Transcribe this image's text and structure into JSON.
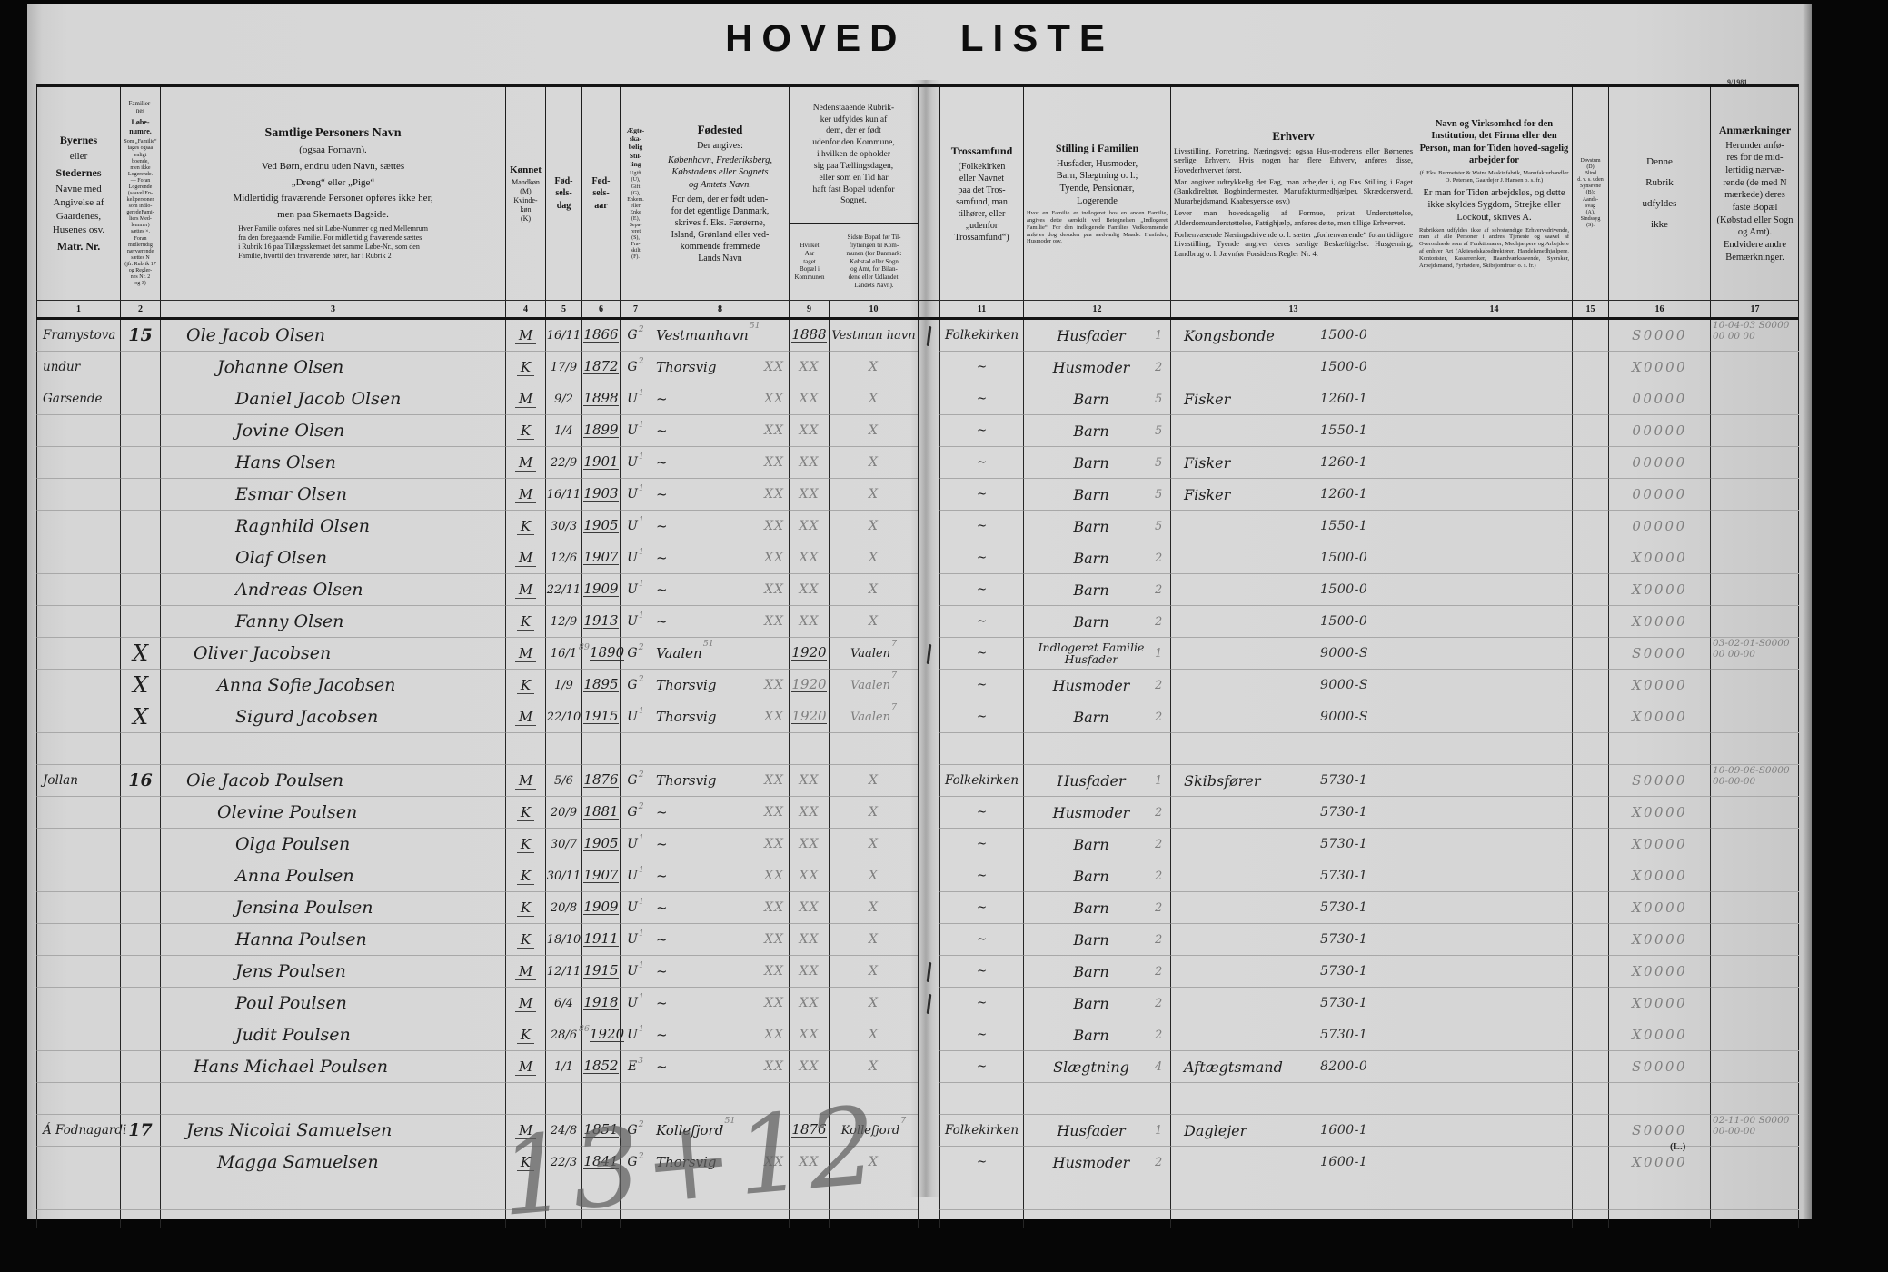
{
  "page": {
    "title": "HOVED LISTE",
    "serial": "9/1981",
    "pencil_total": "13+12",
    "corner_mark": "(L.)"
  },
  "header": {
    "numbers": [
      "1",
      "2",
      "3",
      "4",
      "5",
      "6",
      "7",
      "8",
      "9",
      "10",
      "11",
      "12",
      "13",
      "14",
      "15",
      "16",
      "17"
    ],
    "c1": {
      "b1": "Byernes",
      "n1": "eller",
      "b2": "Stedernes",
      "n2": "Navne med\nAngivelse af\nGaardenes,\nHusenes osv.",
      "b3": "Matr. Nr."
    },
    "c2": {
      "n1": "Familier-\nnes",
      "b": "Løbe-\nnumre.",
      "small": "Som „Familie“\ntages ogsaa\nenligt\nboende,\nmen ikke\nLogerende.\n— Foran\nLogerende\n(saavel En-\nkeltpersoner\nsom indlo-\ngeredeFami-\nliers Med-\nlemmer)\nsættes ×.\nForan\nmidlertidig\nnærværende\nsættes N\n(jfr. Rubrik 17\nog Regler-\nnes Nr. 2\nog 3)"
    },
    "c3": {
      "t": "Samtlige Personers Navn",
      "s1": "(ogsaa Fornavn).",
      "s2": "Ved Børn, endnu uden Navn, sættes",
      "s3": "„Dreng“ eller „Pige“",
      "s4": "Midlertidig fraværende Personer opføres ikke her,",
      "s5": "men paa Skemaets Bagside.",
      "p": "Hver Familie opføres med sit Løbe-Nummer og med Mellemrum\nfra den foregaaende Familie. For midlertidig fraværende sættes\ni Rubrik 16 paa Tillægsskemaet det samme Løbe-Nr., som den\nFamilie, hvortil den fraværende hører, har i Rubrik 2"
    },
    "c4": {
      "t": "Kønnet",
      "s": "Mandkøn\n(M)\nKvinde-\nkøn\n(K)"
    },
    "c5": {
      "t": "Fød-\nsels-\ndag"
    },
    "c6": {
      "t": "Fød-\nsels-\naar"
    },
    "c7": {
      "t": "Ægte-\nska-\nbelig\nStil-\nling",
      "s": "Ugift\n(U),\nGift\n(G),\nEnkem.\neller\nEnke\n(E),\nSepa-\nreret\n(S),\nFra-\nskilt\n(F)."
    },
    "c8": {
      "t": "Fødested",
      "p1": "Der angives:",
      "p2": "København, Frederiksberg,\nKøbstadens eller Sognets\nog Amtets Navn.",
      "p3": "For dem, der er født uden-\nfor det egentlige Danmark,\nskrives f. Eks. Færøerne,\nIsland, Grønland eller ved-\nkommende fremmede\nLands Navn"
    },
    "c910": {
      "top": "Nedenstaaende Rubrik-\nker udfyldes kun af\ndem, der er født\nudenfor den Kommune,\ni hvilken de opholder\nsig paa Tællingsdagen,\neller som en Tid har\nhaft fast Bopæl udenfor\nSognet.",
      "c9": "Hvilket\nAar\ntaget\nBopæl i\nKommunen",
      "c10": "Sidste Bopæl før Til-\nflytningen til Kom-\nmunen (for Danmark:\nKøbstad eller Sogn\nog Amt, for Bilan-\ndene eller Udlandet:\nLandets Navn)."
    },
    "c11": {
      "t": "Trossamfund",
      "s": "(Folkekirken\neller Navnet\npaa det Tros-\nsamfund, man\ntilhører, eller\n„udenfor\nTrossamfund“)"
    },
    "c12": {
      "t": "Stilling i Familien",
      "s": "Husfader, Husmoder,\nBarn, Slægtning o. l.;\nTyende, Pensionær,\nLogerende",
      "p": "Hvor en Familie er indlogeret hos en anden Familie, angives dette særskilt ved Betegnelsen „Indlogeret Familie“. For den indlogerede Families Vedkommende anføres dog desuden paa sædvanlig Maade: Husfader, Husmoder osv."
    },
    "c13": {
      "t": "Erhverv",
      "p1": "Livsstilling, Forretning, Næringsvej; ogsaa Hus-moderens eller Børnenes særlige Erhverv. Hvis nogen har flere Erhverv, anføres disse, Hovederhvervet først.",
      "p2": "Man angiver udtrykkelig det Fag, man arbejder i, og Ens Stilling i Faget (Bankdirektør, Bogbindermester, Manufakturmedhjælper, Skræddersvend, Murarbejdsmand, Kaabesyerske osv.)",
      "p3": "Lever man hovedsagelig af Formue, privat Understøttelse, Alderdomsunderstøttelse, Fattighjælp, anføres dette, men tillige Erhvervet.",
      "p4": "Forhenværende Næringsdrivende o. l. sætter „forhenværende“ foran tidligere Livsstilling; Tyende angiver deres særlige Beskæftigelse: Husgerning, Landbrug o. l. Jævnfør Forsidens Regler Nr. 4."
    },
    "c14": {
      "t1": "Navn og Virksomhed for den Institution, det Firma eller den Person, man for Tiden hoved-sagelig arbejder for",
      "s1": "(f. Eks. Burmeister & Wains Maskinfabrik, Manufakturhandler O. Petersen, Gaardejer J. Hansen o. s. fr.)",
      "t2": "Er man for Tiden arbejdsløs, og dette ikke skyldes Sygdom, Strejke eller Lockout, skrives A.",
      "s2": "Rubrikken udfyldes ikke af selvstændige Erhvervsdrivende, men af alle Personer i andres Tjeneste og saavel af Overordnede som af Funktionærer, Medhjælpere og Arbejdere af enhver Art (Aktieselskabsdirektører, Handelsmedhjælpere, Kontorister, Kasserersker, Haandværkssvende, Syersker, Arbejdsmænd, Fyrbødere, Skibsjomfruer o. s. fr.)"
    },
    "c15": {
      "s": "Døvstum\n(D)\nBlind\nd. v. s. uden\nSynsevne\n(B);\nAands-\nsvag\n(A),\nSindssyg\n(S)."
    },
    "c16": {
      "t": "Denne\nRubrik\nudfyldes\nikke"
    },
    "c17": {
      "t": "Anmærkninger",
      "s": "Herunder anfø-\nres for de mid-\nlertidig nærvæ-\nrende (de med N\nmærkede) deres\nfaste Bopæl\n(Købstad eller Sogn\nog Amt).\nEndvidere andre\nBemærkninger."
    }
  },
  "fold_marks": [
    0,
    10,
    20,
    21
  ],
  "rows": [
    {
      "pl": "Framystova",
      "lb": "15",
      "nm": "Ole Jacob Olsen",
      "sx": "M",
      "bd": "16/11",
      "by": "1866",
      "ms": "G",
      "mss": "2",
      "bp": "Vestmanhavn",
      "bps": "51",
      "c9": "1888",
      "c10": "Vestman havn",
      "fa": "Folkekirken",
      "po": "Husfader",
      "pon": "1",
      "oc": "Kongsbonde",
      "ov": "1500-0",
      "c16": "S0000",
      "c17": "10-04-03 S0000\n00 00 00"
    },
    {
      "pl": "undur",
      "nm": "Johanne Olsen",
      "sx": "K",
      "bd": "17/9",
      "by": "1872",
      "ms": "G",
      "mss": "2",
      "bp": "Thorsvig",
      "bpx": "XX",
      "c9": "XX",
      "c10": "X",
      "fa": "~",
      "po": "Husmoder",
      "pon": "2",
      "ov": "1500-0",
      "c16": "X0000"
    },
    {
      "pl": "Garsende",
      "nm": "Daniel Jacob Olsen",
      "sx": "M",
      "bd": "9/2",
      "by": "1898",
      "ms": "U",
      "mss": "1",
      "bp": "~",
      "bpx": "XX",
      "c9": "XX",
      "c10": "X",
      "fa": "~",
      "po": "Barn",
      "pon": "5",
      "oc": "Fisker",
      "ov": "1260-1",
      "c16": "00000"
    },
    {
      "nm": "Jovine Olsen",
      "sx": "K",
      "bd": "1/4",
      "by": "1899",
      "ms": "U",
      "mss": "1",
      "bp": "~",
      "bpx": "XX",
      "c9": "XX",
      "c10": "X",
      "fa": "~",
      "po": "Barn",
      "pon": "5",
      "ov": "1550-1",
      "c16": "00000"
    },
    {
      "nm": "Hans Olsen",
      "sx": "M",
      "bd": "22/9",
      "by": "1901",
      "ms": "U",
      "mss": "1",
      "bp": "~",
      "bpx": "XX",
      "c9": "XX",
      "c10": "X",
      "fa": "~",
      "po": "Barn",
      "pon": "5",
      "oc": "Fisker",
      "ov": "1260-1",
      "c16": "00000"
    },
    {
      "nm": "Esmar Olsen",
      "sx": "M",
      "bd": "16/11",
      "by": "1903",
      "ms": "U",
      "mss": "1",
      "bp": "~",
      "bpx": "XX",
      "c9": "XX",
      "c10": "X",
      "fa": "~",
      "po": "Barn",
      "pon": "5",
      "oc": "Fisker",
      "ov": "1260-1",
      "c16": "00000"
    },
    {
      "nm": "Ragnhild Olsen",
      "sx": "K",
      "bd": "30/3",
      "by": "1905",
      "ms": "U",
      "mss": "1",
      "bp": "~",
      "bpx": "XX",
      "c9": "XX",
      "c10": "X",
      "fa": "~",
      "po": "Barn",
      "pon": "5",
      "ov": "1550-1",
      "c16": "00000"
    },
    {
      "nm": "Olaf Olsen",
      "sx": "M",
      "bd": "12/6",
      "by": "1907",
      "ms": "U",
      "mss": "1",
      "bp": "~",
      "bpx": "XX",
      "c9": "XX",
      "c10": "X",
      "fa": "~",
      "po": "Barn",
      "pon": "2",
      "ov": "1500-0",
      "c16": "X0000"
    },
    {
      "nm": "Andreas Olsen",
      "sx": "M",
      "bd": "22/11",
      "by": "1909",
      "ms": "U",
      "mss": "1",
      "bp": "~",
      "bpx": "XX",
      "c9": "XX",
      "c10": "X",
      "fa": "~",
      "po": "Barn",
      "pon": "2",
      "ov": "1500-0",
      "c16": "X0000"
    },
    {
      "nm": "Fanny Olsen",
      "sx": "K",
      "bd": "12/9",
      "by": "1913",
      "ms": "U",
      "mss": "1",
      "bp": "~",
      "bpx": "XX",
      "c9": "XX",
      "c10": "X",
      "fa": "~",
      "po": "Barn",
      "pon": "2",
      "ov": "1500-0",
      "c16": "X0000"
    },
    {
      "lb": "X",
      "nm": "Oliver Jacobsen",
      "sx": "M",
      "bd": "16/1",
      "by": "1890",
      "bys": "89",
      "ms": "G",
      "mss": "2",
      "bp": "Vaalen",
      "bps": "51",
      "c9": "1920",
      "c10": "Vaalen",
      "c10s": "7",
      "fa": "~",
      "po": "Indlogeret Familie",
      "po2": "Husfader",
      "pon": "1",
      "ov": "9000-S",
      "c16": "S0000",
      "c17": "03-02-01-S0000\n00 00-00"
    },
    {
      "lb": "X",
      "nm": "Anna Sofie Jacobsen",
      "sx": "K",
      "bd": "1/9",
      "by": "1895",
      "ms": "G",
      "mss": "2",
      "bp": "Thorsvig",
      "bpx": "XX",
      "c9": "1920",
      "c9p": true,
      "c10": "Vaalen",
      "c10s": "7",
      "c10p": true,
      "fa": "~",
      "po": "Husmoder",
      "pon": "2",
      "ov": "9000-S",
      "c16": "X0000"
    },
    {
      "lb": "X",
      "nm": "Sigurd Jacobsen",
      "sx": "M",
      "bd": "22/10",
      "by": "1915",
      "ms": "U",
      "mss": "1",
      "bp": "Thorsvig",
      "bpx": "XX",
      "c9": "1920",
      "c9p": true,
      "c10": "Vaalen",
      "c10s": "7",
      "c10p": true,
      "fa": "~",
      "po": "Barn",
      "pon": "2",
      "ov": "9000-S",
      "c16": "X0000"
    },
    {},
    {
      "pl": "Jollan",
      "lb": "16",
      "nm": "Ole Jacob Poulsen",
      "sx": "M",
      "bd": "5/6",
      "by": "1876",
      "ms": "G",
      "mss": "2",
      "bp": "Thorsvig",
      "bpx": "XX",
      "c9": "XX",
      "c10": "X",
      "fa": "Folkekirken",
      "po": "Husfader",
      "pon": "1",
      "oc": "Skibsfører",
      "ov": "5730-1",
      "c16": "S0000",
      "c17": "10-09-06-S0000\n00-00-00"
    },
    {
      "nm": "Olevine Poulsen",
      "sx": "K",
      "bd": "20/9",
      "by": "1881",
      "ms": "G",
      "mss": "2",
      "bp": "~",
      "bpx": "XX",
      "c9": "XX",
      "c10": "X",
      "fa": "~",
      "po": "Husmoder",
      "pon": "2",
      "ov": "5730-1",
      "c16": "X0000"
    },
    {
      "nm": "Olga Poulsen",
      "sx": "K",
      "bd": "30/7",
      "by": "1905",
      "ms": "U",
      "mss": "1",
      "bp": "~",
      "bpx": "XX",
      "c9": "XX",
      "c10": "X",
      "fa": "~",
      "po": "Barn",
      "pon": "2",
      "ov": "5730-1",
      "c16": "X0000"
    },
    {
      "nm": "Anna Poulsen",
      "sx": "K",
      "bd": "30/11",
      "by": "1907",
      "ms": "U",
      "mss": "1",
      "bp": "~",
      "bpx": "XX",
      "c9": "XX",
      "c10": "X",
      "fa": "~",
      "po": "Barn",
      "pon": "2",
      "ov": "5730-1",
      "c16": "X0000"
    },
    {
      "nm": "Jensina Poulsen",
      "sx": "K",
      "bd": "20/8",
      "by": "1909",
      "ms": "U",
      "mss": "1",
      "bp": "~",
      "bpx": "XX",
      "c9": "XX",
      "c10": "X",
      "fa": "~",
      "po": "Barn",
      "pon": "2",
      "ov": "5730-1",
      "c16": "X0000"
    },
    {
      "nm": "Hanna Poulsen",
      "sx": "K",
      "bd": "18/10",
      "by": "1911",
      "ms": "U",
      "mss": "1",
      "bp": "~",
      "bpx": "XX",
      "c9": "XX",
      "c10": "X",
      "fa": "~",
      "po": "Barn",
      "pon": "2",
      "ov": "5730-1",
      "c16": "X0000"
    },
    {
      "nm": "Jens Poulsen",
      "sx": "M",
      "bd": "12/11",
      "by": "1915",
      "ms": "U",
      "mss": "1",
      "bp": "~",
      "bpx": "XX",
      "c9": "XX",
      "c10": "X",
      "fa": "~",
      "po": "Barn",
      "pon": "2",
      "ov": "5730-1",
      "c16": "X0000"
    },
    {
      "nm": "Poul Poulsen",
      "sx": "M",
      "bd": "6/4",
      "by": "1918",
      "ms": "U",
      "mss": "1",
      "bp": "~",
      "bpx": "XX",
      "c9": "XX",
      "c10": "X",
      "fa": "~",
      "po": "Barn",
      "pon": "2",
      "ov": "5730-1",
      "c16": "X0000"
    },
    {
      "nm": "Judit Poulsen",
      "sx": "K",
      "bd": "28/6",
      "by": "1920",
      "bys": "86",
      "ms": "U",
      "mss": "1",
      "bp": "~",
      "bpx": "XX",
      "c9": "XX",
      "c10": "X",
      "fa": "~",
      "po": "Barn",
      "pon": "2",
      "ov": "5730-1",
      "c16": "X0000"
    },
    {
      "nm": "Hans Michael Poulsen",
      "sx": "M",
      "bd": "1/1",
      "by": "1852",
      "ms": "E",
      "mss": "3",
      "bp": "~",
      "bpx": "XX",
      "c9": "XX",
      "c10": "X",
      "fa": "~",
      "po": "Slægtning",
      "pon": "4",
      "oc": "Aftægtsmand",
      "ov": "8200-0",
      "c16": "S0000"
    },
    {},
    {
      "pl": "Á Fodnagardi",
      "lb": "17",
      "nm": "Jens Nicolai Samuelsen",
      "sx": "M",
      "bd": "24/8",
      "by": "1851",
      "ms": "G",
      "mss": "2",
      "bp": "Kollefjord",
      "bps": "51",
      "c9": "1876",
      "c10": "Kollefjord",
      "c10s": "7",
      "fa": "Folkekirken",
      "po": "Husfader",
      "pon": "1",
      "oc": "Daglejer",
      "ov": "1600-1",
      "c16": "S0000",
      "c17": "02-11-00 S0000\n00-00-00"
    },
    {
      "nm": "Magga Samuelsen",
      "sx": "K",
      "bd": "22/3",
      "by": "1841",
      "ms": "G",
      "mss": "2",
      "bp": "Thorsvig",
      "bpx": "XX",
      "c9": "XX",
      "c10": "X",
      "fa": "~",
      "po": "Husmoder",
      "pon": "2",
      "ov": "1600-1",
      "c16": "X0000"
    },
    {}
  ]
}
